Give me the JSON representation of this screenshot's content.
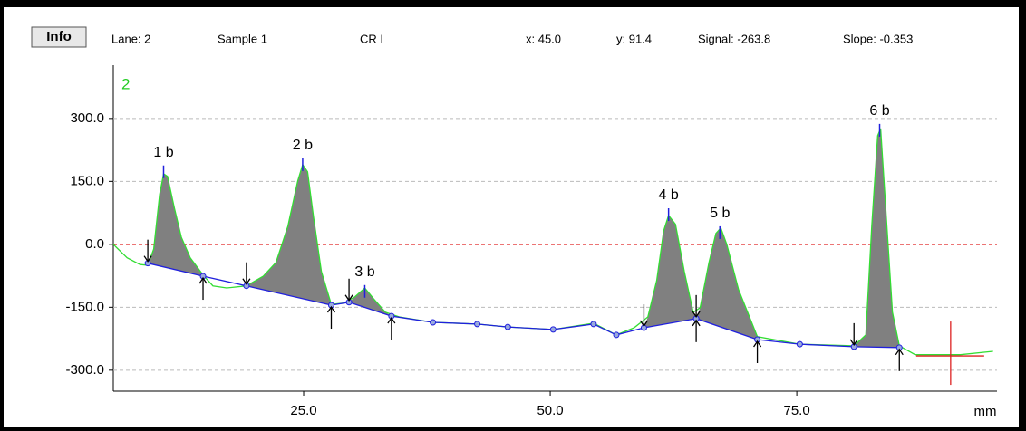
{
  "header": {
    "button": "Info",
    "lane": "Lane:  2",
    "sample": "Sample  1",
    "mode": "CR I",
    "x": "x: 45.0",
    "y": "y: 91.4",
    "signal": "Signal:  -263.8",
    "slope": "Slope:  -0.353"
  },
  "chart_data": {
    "type": "line",
    "lane_label": "2",
    "x_label": "mm",
    "xlim": [
      5.7,
      95.3
    ],
    "ylim": [
      -350,
      427
    ],
    "xticks": [
      {
        "value": 25,
        "label": "25.0"
      },
      {
        "value": 50,
        "label": "50.0"
      },
      {
        "value": 75,
        "label": "75.0"
      }
    ],
    "yticks": [
      {
        "value": 300,
        "label": "300.0"
      },
      {
        "value": 150,
        "label": "150.0"
      },
      {
        "value": 0,
        "label": "0.0"
      },
      {
        "value": -150,
        "label": "-150.0"
      },
      {
        "value": -300,
        "label": "-300.0"
      }
    ],
    "grid": true,
    "signal": {
      "color": "#33dd33",
      "x": [
        5.7,
        7.1,
        8.4,
        9.2,
        9.8,
        10.4,
        10.8,
        11.2,
        11.9,
        12.6,
        13.5,
        14.8,
        15.8,
        17.2,
        19.2,
        20.9,
        22.2,
        23.4,
        24.4,
        24.9,
        25.4,
        26.0,
        26.8,
        27.8,
        29.1,
        30.2,
        31.2,
        32.1,
        33.3,
        34.7,
        38.1,
        42.6,
        45.7,
        50.3,
        54.4,
        56.7,
        58.5,
        59.9,
        60.8,
        61.5,
        62.0,
        62.7,
        63.6,
        64.5,
        65.2,
        66.1,
        66.8,
        67.3,
        67.9,
        69.1,
        71.0,
        75.3,
        80.8,
        82.0,
        82.6,
        83.2,
        83.5,
        83.9,
        84.7,
        85.4,
        87.0,
        91.6,
        94.9
      ],
      "y": [
        0,
        -32,
        -48,
        -50,
        -11,
        119,
        168,
        162,
        86,
        17,
        -32,
        -73,
        -99,
        -104,
        -99,
        -76,
        -43,
        43,
        151,
        190,
        173,
        65,
        -65,
        -143,
        -140,
        -125,
        -104,
        -130,
        -162,
        -173,
        -186,
        -190,
        -197,
        -203,
        -188,
        -216,
        -199,
        -173,
        -86,
        32,
        69,
        48,
        -65,
        -162,
        -151,
        -43,
        26,
        39,
        0,
        -108,
        -220,
        -238,
        -242,
        -216,
        43,
        259,
        276,
        130,
        -162,
        -242,
        -263,
        -263,
        -255
      ]
    },
    "baseline": {
      "color": "#2020dd",
      "x": [
        9.2,
        14.8,
        19.2,
        27.8,
        29.6,
        33.9,
        38.1,
        42.6,
        45.7,
        50.3,
        54.4,
        56.7,
        59.5,
        64.8,
        71.0,
        75.3,
        80.8,
        85.4
      ],
      "y": [
        -45,
        -76,
        -99,
        -145,
        -138,
        -171,
        -186,
        -190,
        -197,
        -203,
        -190,
        -216,
        -199,
        -177,
        -227,
        -238,
        -244,
        -246
      ]
    },
    "peaks": [
      {
        "label": "1 b",
        "x": 10.8,
        "value": 188,
        "start": 9.2,
        "end": 14.8
      },
      {
        "label": "2 b",
        "x": 24.9,
        "value": 205,
        "start": 19.2,
        "end": 27.8
      },
      {
        "label": "3 b",
        "x": 31.2,
        "value": -97,
        "start": 29.6,
        "end": 33.9
      },
      {
        "label": "4 b",
        "x": 62.0,
        "value": 86,
        "start": 59.5,
        "end": 64.8
      },
      {
        "label": "5 b",
        "x": 67.2,
        "value": 43,
        "start": 64.8,
        "end": 71.0
      },
      {
        "label": "6 b",
        "x": 83.4,
        "value": 287,
        "start": 80.8,
        "end": 85.4
      }
    ],
    "fill_color": "#808080",
    "cursor": {
      "x": 90.6,
      "y": -266,
      "color": "#dd2020"
    }
  }
}
